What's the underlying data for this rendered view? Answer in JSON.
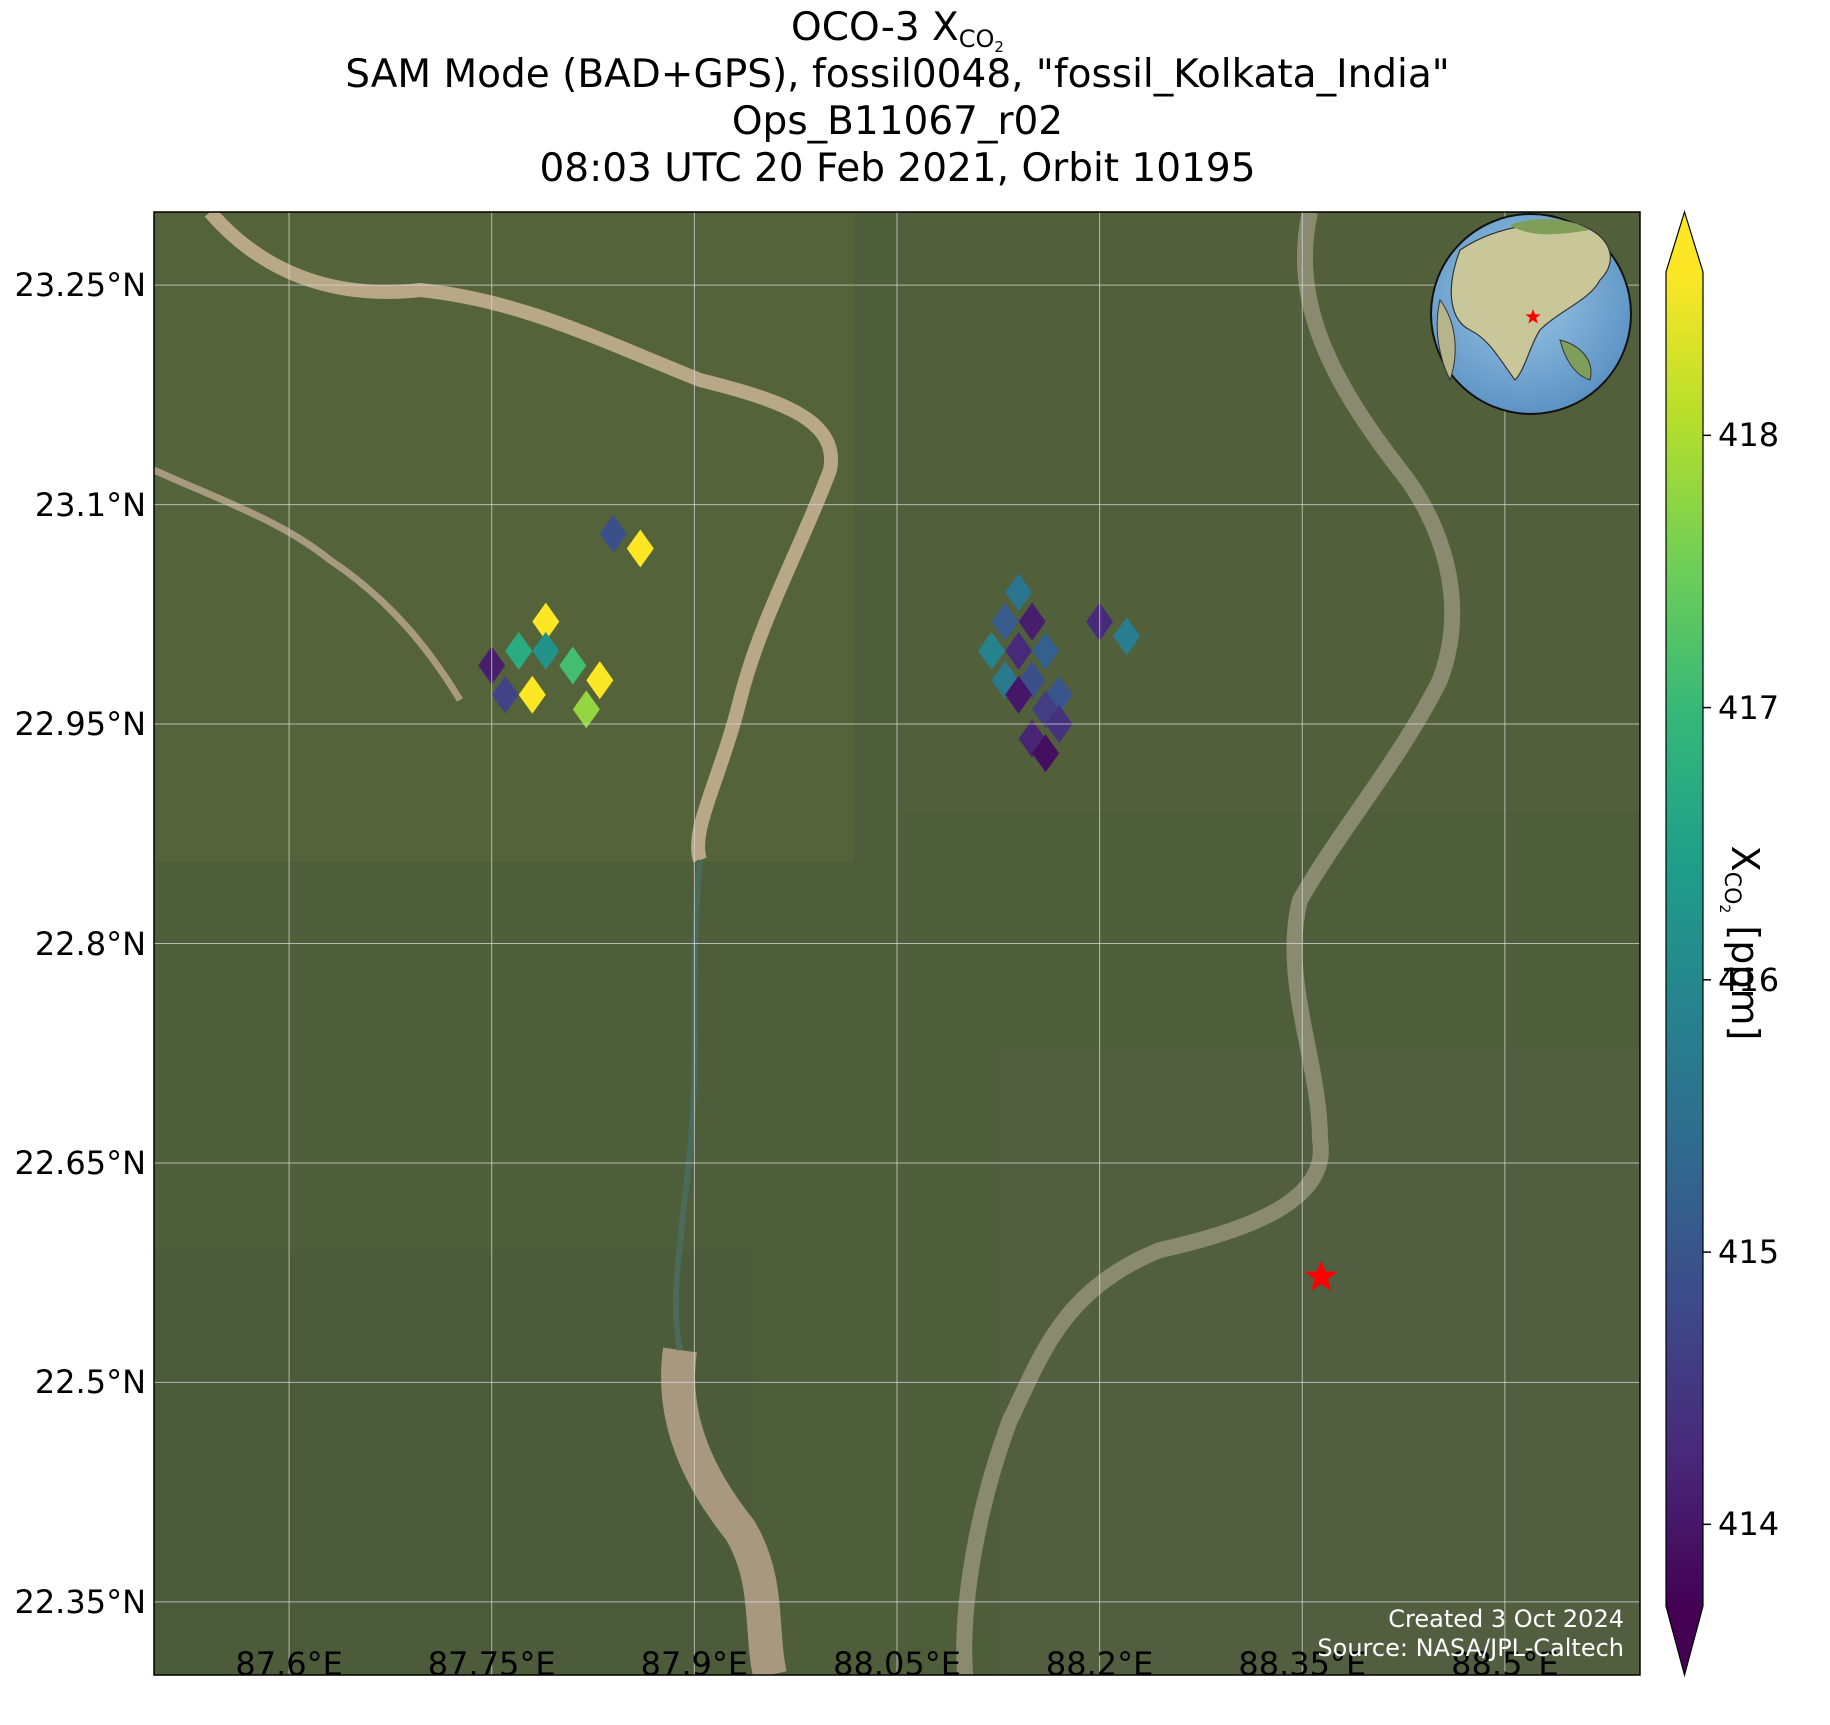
{
  "title": {
    "line1_prefix": "OCO-3 X",
    "line1_sub": "CO",
    "line1_sub2": "2",
    "line2": "SAM Mode (BAD+GPS), fossil0048, \"fossil_Kolkata_India\"",
    "line3": "Ops_B11067_r02",
    "line4": "08:03 UTC 20 Feb 2021, Orbit 10195"
  },
  "map": {
    "lon_range": [
      87.5,
      88.6
    ],
    "lat_range": [
      22.3,
      23.3
    ],
    "lat_ticks": [
      {
        "value": 23.25,
        "label": "23.25°N"
      },
      {
        "value": 23.1,
        "label": "23.1°N"
      },
      {
        "value": 22.95,
        "label": "22.95°N"
      },
      {
        "value": 22.8,
        "label": "22.8°N"
      },
      {
        "value": 22.65,
        "label": "22.65°N"
      },
      {
        "value": 22.5,
        "label": "22.5°N"
      },
      {
        "value": 22.35,
        "label": "22.35°N"
      }
    ],
    "lon_ticks": [
      {
        "value": 87.6,
        "label": "87.6°E"
      },
      {
        "value": 87.75,
        "label": "87.75°E"
      },
      {
        "value": 87.9,
        "label": "87.9°E"
      },
      {
        "value": 88.05,
        "label": "88.05°E"
      },
      {
        "value": 88.2,
        "label": "88.2°E"
      },
      {
        "value": 88.35,
        "label": "88.35°E"
      },
      {
        "value": 88.5,
        "label": "88.5°E"
      }
    ],
    "target": {
      "lon": 88.364,
      "lat": 22.572,
      "marker": "red-star",
      "color": "#ff0000"
    },
    "basemap": "satellite imagery",
    "colors": {
      "land": "#4f5e3a",
      "river": "#8a8a70",
      "sediment": "#b8a888",
      "grid": "#d8d8d8"
    }
  },
  "colorbar": {
    "min": 413.7,
    "max": 418.6,
    "colormap": "viridis",
    "extend": "both",
    "ticks": [
      {
        "value": 418,
        "label": "418"
      },
      {
        "value": 417,
        "label": "417"
      },
      {
        "value": 416,
        "label": "416"
      },
      {
        "value": 415,
        "label": "415"
      },
      {
        "value": 414,
        "label": "414"
      }
    ],
    "label_prefix": "X",
    "label_sub": "CO",
    "label_sub2": "2",
    "label_suffix": " [ppm]"
  },
  "soundings": [
    {
      "lon": 87.84,
      "lat": 23.08,
      "xco2": 414.9
    },
    {
      "lon": 87.86,
      "lat": 23.07,
      "xco2": 418.6
    },
    {
      "lon": 87.79,
      "lat": 23.02,
      "xco2": 418.6
    },
    {
      "lon": 87.75,
      "lat": 22.99,
      "xco2": 414.1
    },
    {
      "lon": 87.77,
      "lat": 23.0,
      "xco2": 416.7
    },
    {
      "lon": 87.79,
      "lat": 23.0,
      "xco2": 416.2
    },
    {
      "lon": 87.81,
      "lat": 22.99,
      "xco2": 417.1
    },
    {
      "lon": 87.83,
      "lat": 22.98,
      "xco2": 418.6
    },
    {
      "lon": 87.76,
      "lat": 22.97,
      "xco2": 414.7
    },
    {
      "lon": 87.78,
      "lat": 22.97,
      "xco2": 418.6
    },
    {
      "lon": 87.82,
      "lat": 22.96,
      "xco2": 417.8
    },
    {
      "lon": 88.14,
      "lat": 23.04,
      "xco2": 415.6
    },
    {
      "lon": 88.13,
      "lat": 23.02,
      "xco2": 415.1
    },
    {
      "lon": 88.15,
      "lat": 23.02,
      "xco2": 414.1
    },
    {
      "lon": 88.12,
      "lat": 23.0,
      "xco2": 415.9
    },
    {
      "lon": 88.14,
      "lat": 23.0,
      "xco2": 414.3
    },
    {
      "lon": 88.16,
      "lat": 23.0,
      "xco2": 415.2
    },
    {
      "lon": 88.13,
      "lat": 22.98,
      "xco2": 415.7
    },
    {
      "lon": 88.15,
      "lat": 22.98,
      "xco2": 414.9
    },
    {
      "lon": 88.17,
      "lat": 22.97,
      "xco2": 415.0
    },
    {
      "lon": 88.14,
      "lat": 22.97,
      "xco2": 414.0
    },
    {
      "lon": 88.16,
      "lat": 22.96,
      "xco2": 414.6
    },
    {
      "lon": 88.15,
      "lat": 22.94,
      "xco2": 414.2
    },
    {
      "lon": 88.17,
      "lat": 22.95,
      "xco2": 414.4
    },
    {
      "lon": 88.16,
      "lat": 22.93,
      "xco2": 413.9
    },
    {
      "lon": 88.2,
      "lat": 23.02,
      "xco2": 414.3
    },
    {
      "lon": 88.22,
      "lat": 23.01,
      "xco2": 415.8
    }
  ],
  "credits": {
    "line1": "Created 3 Oct 2024",
    "line2": "Source: NASA/JPL-Caltech"
  }
}
